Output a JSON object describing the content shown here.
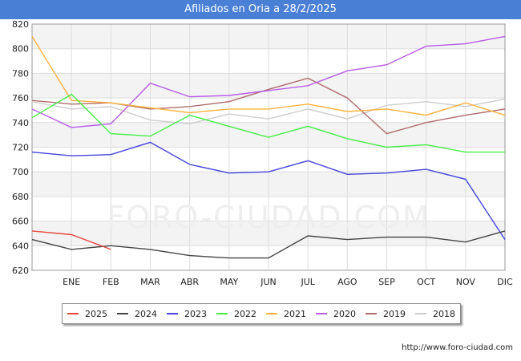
{
  "header": {
    "title": "Afiliados en Oria a 28/2/2025"
  },
  "footer": {
    "source": "http://www.foro-ciudad.com"
  },
  "watermark": "FORO-CIUDAD.COM",
  "chart_data": {
    "type": "line",
    "title": "Afiliados en Oria a 28/2/2025",
    "xlabel": "",
    "ylabel": "",
    "categories": [
      "",
      "ENE",
      "FEB",
      "MAR",
      "ABR",
      "MAY",
      "JUN",
      "JUL",
      "AGO",
      "SEP",
      "OCT",
      "NOV",
      "DIC"
    ],
    "ylim": [
      620,
      820
    ],
    "yticks": [
      620,
      640,
      660,
      680,
      700,
      720,
      740,
      760,
      780,
      800,
      820
    ],
    "grid": true,
    "legend_position": "bottom",
    "series": [
      {
        "name": "2025",
        "color": "#e8473f",
        "values": [
          652,
          649,
          637,
          null,
          null,
          null,
          null,
          null,
          null,
          null,
          null,
          null,
          null
        ]
      },
      {
        "name": "2024",
        "color": "#444444",
        "values": [
          645,
          637,
          640,
          637,
          632,
          630,
          630,
          648,
          645,
          647,
          647,
          643,
          652
        ]
      },
      {
        "name": "2023",
        "color": "#4444dd",
        "values": [
          716,
          713,
          714,
          724,
          706,
          699,
          700,
          709,
          698,
          699,
          702,
          694,
          645
        ]
      },
      {
        "name": "2022",
        "color": "#44ee44",
        "values": [
          744,
          763,
          731,
          729,
          746,
          737,
          728,
          737,
          727,
          720,
          722,
          716,
          716
        ]
      },
      {
        "name": "2021",
        "color": "#ffb23b",
        "values": [
          810,
          758,
          756,
          752,
          748,
          751,
          751,
          755,
          749,
          751,
          746,
          756,
          746
        ]
      },
      {
        "name": "2020",
        "color": "#b85be8",
        "values": [
          751,
          736,
          739,
          772,
          761,
          762,
          766,
          770,
          782,
          787,
          802,
          804,
          810
        ]
      },
      {
        "name": "2019",
        "color": "#b06a6a",
        "values": [
          758,
          755,
          756,
          751,
          753,
          757,
          767,
          776,
          760,
          731,
          740,
          746,
          751
        ]
      },
      {
        "name": "2018",
        "color": "#cccccc",
        "values": [
          757,
          751,
          753,
          742,
          739,
          747,
          743,
          751,
          743,
          754,
          757,
          753,
          759
        ]
      }
    ]
  }
}
